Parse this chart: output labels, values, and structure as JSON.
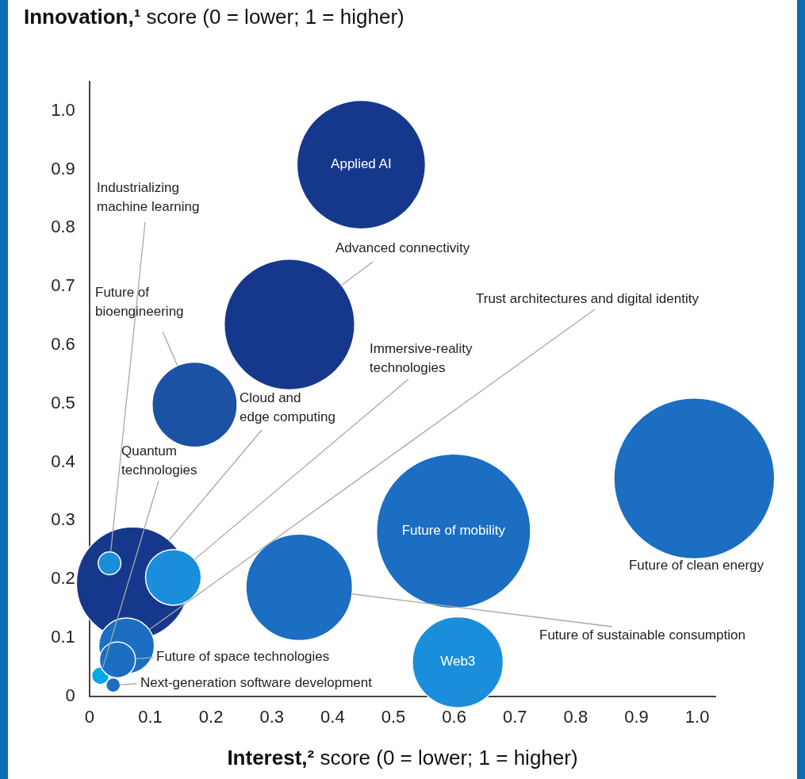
{
  "chart_data": {
    "type": "bubble",
    "ylabel": "Innovation,¹ score (0 = lower; 1 = higher)",
    "xlabel": "Interest,² score (0 = lower; 1 = higher)",
    "xlim": [
      0,
      1.03
    ],
    "ylim": [
      0,
      1.05
    ],
    "xticks": [
      0,
      0.1,
      0.2,
      0.3,
      0.4,
      0.5,
      0.6,
      0.7,
      0.8,
      0.9,
      {
        "value": 1,
        "label": "1.0"
      }
    ],
    "yticks": [
      0,
      0.1,
      0.2,
      0.3,
      0.4,
      0.5,
      0.6,
      0.7,
      0.8,
      0.9,
      {
        "value": 1,
        "label": "1.0"
      }
    ],
    "grid": false,
    "legend": false,
    "series": [
      {
        "name": "Applied AI",
        "color": "#16388c",
        "x": [
          0.447
        ],
        "values": [
          0.908
        ],
        "sizes": [
          0.64
        ]
      },
      {
        "name": "Advanced connectivity",
        "color": "#16388c",
        "x": [
          0.329
        ],
        "values": [
          0.635
        ],
        "sizes": [
          0.66
        ]
      },
      {
        "name": "Future of bioengineering",
        "color": "#1c52a4",
        "x": [
          0.173
        ],
        "values": [
          0.498
        ],
        "sizes": [
          0.28
        ]
      },
      {
        "name": "Cloud and edge computing",
        "color": "#16388c",
        "x": [
          0.071
        ],
        "values": [
          0.193
        ],
        "sizes": [
          0.49
        ]
      },
      {
        "name": "Immersive-reality technologies",
        "color": "#1a8edb",
        "x": [
          0.138
        ],
        "values": [
          0.203
        ],
        "sizes": [
          0.12
        ]
      },
      {
        "name": "Trust architectures and digital identity",
        "color": "#1b6ec2",
        "x": [
          0.061
        ],
        "values": [
          0.086
        ],
        "sizes": [
          0.12
        ]
      },
      {
        "name": "Future of clean energy",
        "color": "#1b6ec2",
        "x": [
          0.995
        ],
        "values": [
          0.372
        ],
        "sizes": [
          1
        ]
      },
      {
        "name": "Future of mobility",
        "color": "#1b6ec2",
        "x": [
          0.599
        ],
        "values": [
          0.282
        ],
        "sizes": [
          0.92
        ]
      },
      {
        "name": "Future of sustainable consumption",
        "color": "#1b6ec2",
        "x": [
          0.345
        ],
        "values": [
          0.186
        ],
        "sizes": [
          0.44
        ]
      },
      {
        "name": "Web3",
        "color": "#1a8edb",
        "x": [
          0.606
        ],
        "values": [
          0.058
        ],
        "sizes": [
          0.32
        ]
      },
      {
        "name": "Industrializing machine learning",
        "color": "#1a8edb",
        "x": [
          0.033
        ],
        "values": [
          0.227
        ],
        "sizes": [
          0.02
        ]
      },
      {
        "name": "Quantum technologies",
        "color": "#00a9e9",
        "x": [
          0.018
        ],
        "values": [
          0.035
        ],
        "sizes": [
          0.012
        ]
      },
      {
        "name": "Future of space technologies",
        "color": "#1b6ec2",
        "x": [
          0.046
        ],
        "values": [
          0.062
        ],
        "sizes": [
          0.05
        ]
      },
      {
        "name": "Next-generation software development",
        "color": "#1b6ec2",
        "x": [
          0.039
        ],
        "values": [
          0.019
        ],
        "sizes": [
          0.008
        ]
      }
    ]
  }
}
